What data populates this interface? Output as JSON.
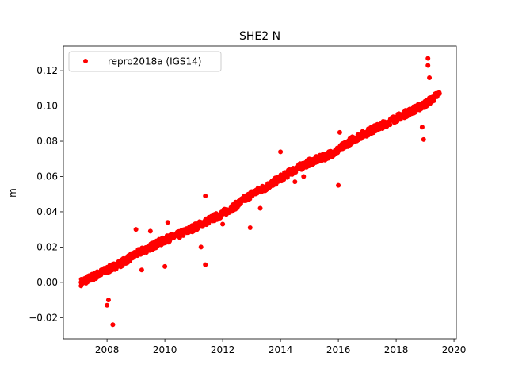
{
  "chart_data": {
    "type": "scatter",
    "title": "SHE2 N",
    "xlabel": "",
    "ylabel": "m",
    "xlim": [
      2006.49,
      2020.08
    ],
    "ylim": [
      -0.032,
      0.134
    ],
    "xticks": [
      2008,
      2010,
      2012,
      2014,
      2016,
      2018,
      2020
    ],
    "xtick_labels": [
      "2008",
      "2010",
      "2012",
      "2014",
      "2016",
      "2018",
      "2020"
    ],
    "yticks": [
      -0.02,
      0.0,
      0.02,
      0.04,
      0.06,
      0.08,
      0.1,
      0.12
    ],
    "ytick_labels": [
      "−0.02",
      "0.00",
      "0.02",
      "0.04",
      "0.06",
      "0.08",
      "0.10",
      "0.12"
    ],
    "grid": false,
    "legend": {
      "placement": "top-left",
      "entries": [
        "repro2018a (IGS14)"
      ]
    },
    "series": [
      {
        "name": "repro2018a (IGS14)",
        "color": "#ff0000",
        "x": [
          2007.1,
          2007.5,
          2008.0,
          2008.5,
          2009.0,
          2009.5,
          2010.0,
          2010.5,
          2011.0,
          2011.5,
          2012.0,
          2012.5,
          2013.0,
          2013.5,
          2014.0,
          2014.5,
          2015.0,
          2015.5,
          2016.0,
          2016.5,
          2017.0,
          2017.5,
          2018.0,
          2018.5,
          2019.0,
          2019.5
        ],
        "y": [
          0.0,
          0.003,
          0.007,
          0.011,
          0.016,
          0.02,
          0.024,
          0.027,
          0.031,
          0.035,
          0.039,
          0.044,
          0.05,
          0.054,
          0.059,
          0.064,
          0.068,
          0.071,
          0.075,
          0.081,
          0.085,
          0.089,
          0.093,
          0.097,
          0.101,
          0.107
        ]
      }
    ],
    "outliers": {
      "x": [
        2008.0,
        2008.2,
        2008.05,
        2009.0,
        2009.2,
        2009.5,
        2010.0,
        2010.1,
        2011.4,
        2011.4,
        2011.25,
        2012.0,
        2012.95,
        2013.3,
        2014.0,
        2014.5,
        2016.0,
        2016.05,
        2019.1,
        2019.1,
        2018.95,
        2018.9,
        2019.15,
        2014.8
      ],
      "y": [
        -0.013,
        -0.024,
        -0.01,
        0.03,
        0.007,
        0.029,
        0.009,
        0.034,
        0.049,
        0.01,
        0.02,
        0.033,
        0.031,
        0.042,
        0.074,
        0.057,
        0.055,
        0.085,
        0.127,
        0.123,
        0.081,
        0.088,
        0.116,
        0.06
      ]
    }
  }
}
